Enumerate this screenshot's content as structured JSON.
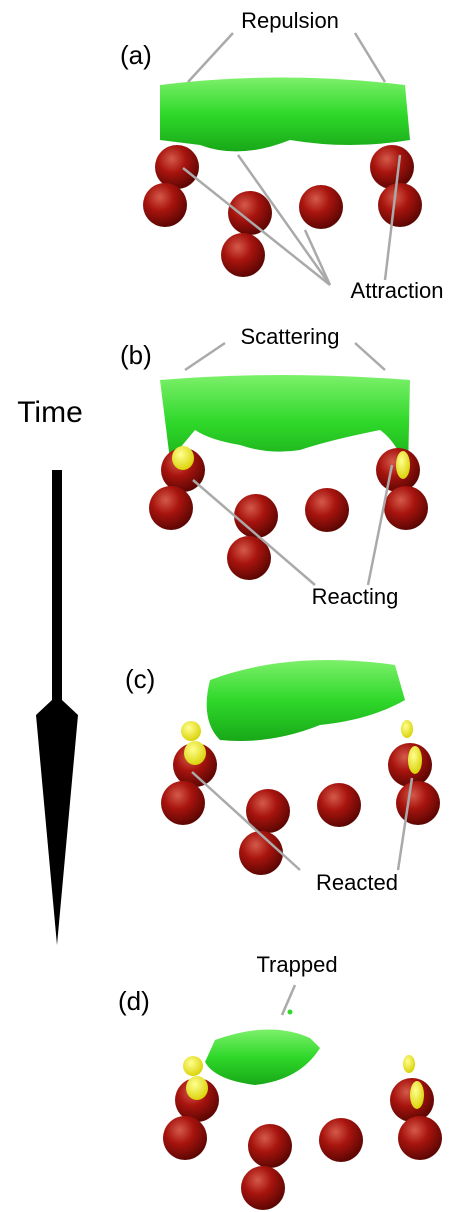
{
  "time_label": "Time",
  "panels": [
    {
      "label": "(a)",
      "annotations": [
        "Repulsion",
        "Attraction"
      ]
    },
    {
      "label": "(b)",
      "annotations": [
        "Scattering",
        "Reacting"
      ]
    },
    {
      "label": "(c)",
      "annotations": [
        "Reacted"
      ]
    },
    {
      "label": "(d)",
      "annotations": [
        "Trapped"
      ]
    }
  ]
}
